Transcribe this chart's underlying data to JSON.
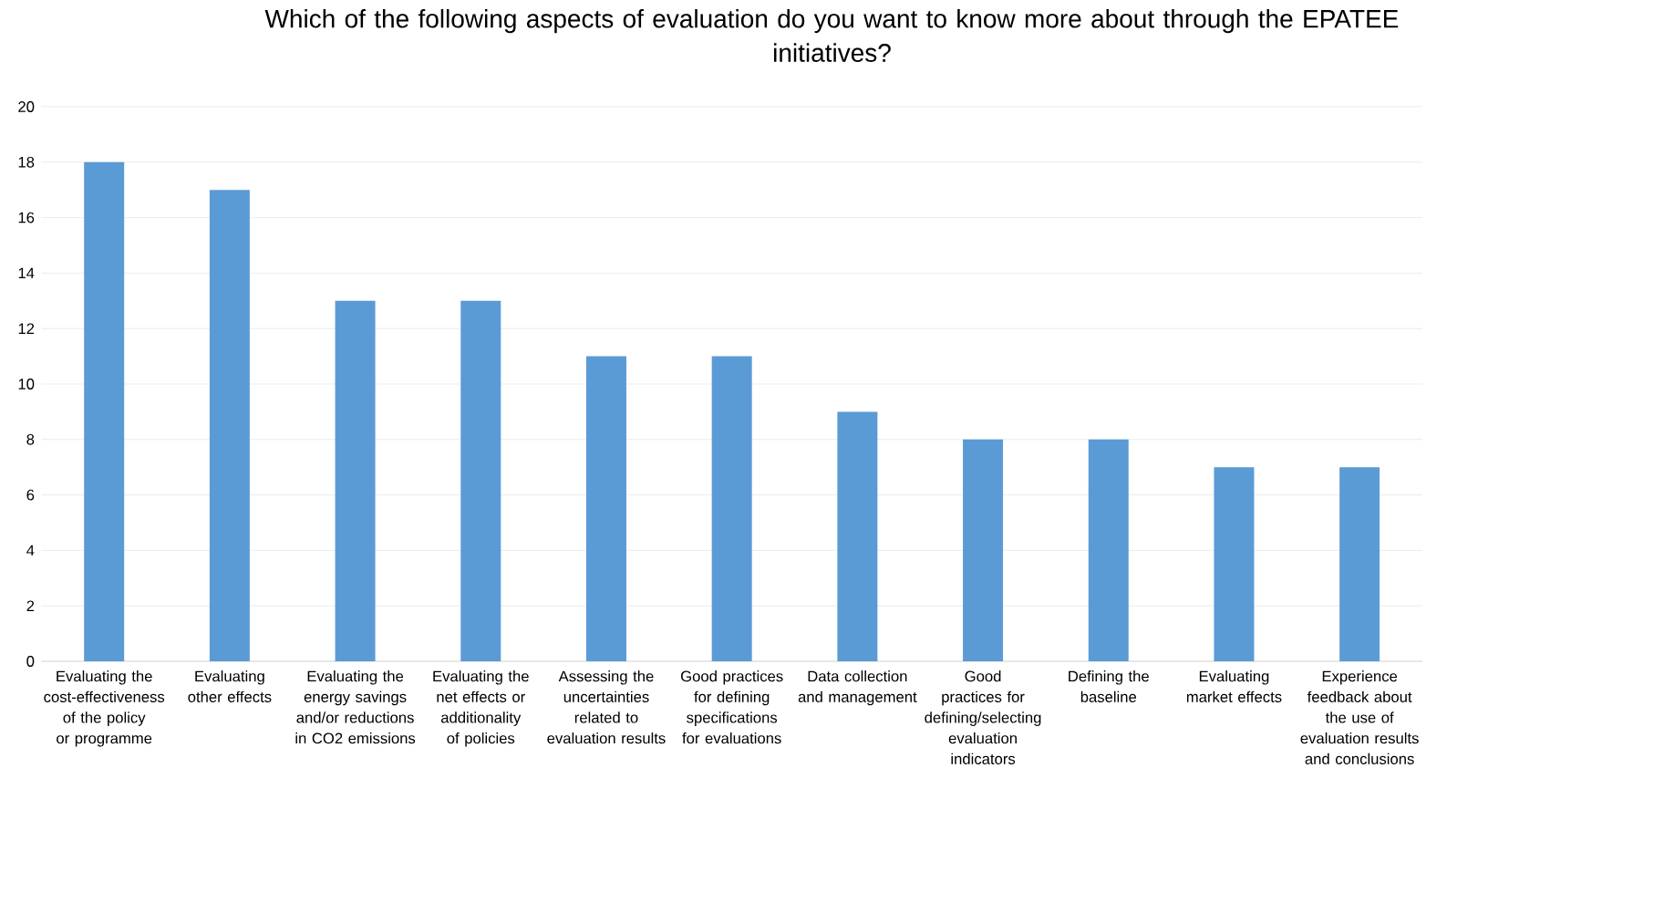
{
  "chart_data": {
    "type": "bar",
    "title": "Which of the following aspects of evaluation do you want to know more about through the EPATEE initiatives?",
    "categories": [
      "Evaluating the cost-effectiveness of the policy or programme",
      "Evaluating other effects",
      "Evaluating the energy savings and/or reductions in CO2 emissions",
      "Evaluating the net effects or additionality of policies",
      "Assessing the uncertainties related to evaluation results",
      "Good practices for defining specifications for evaluations",
      "Data collection and management",
      "Good practices for defining/selecting evaluation indicators",
      "Defining the baseline",
      "Evaluating market effects",
      "Experience feedback about the use of evaluation results and conclusions"
    ],
    "values": [
      18,
      17,
      13,
      13,
      11,
      11,
      9,
      8,
      8,
      7,
      7
    ],
    "color": "#5b9bd5",
    "ylim": [
      0,
      20
    ],
    "yticks": [
      0,
      2,
      4,
      6,
      8,
      10,
      12,
      14,
      16,
      18,
      20
    ],
    "grid": "y"
  }
}
